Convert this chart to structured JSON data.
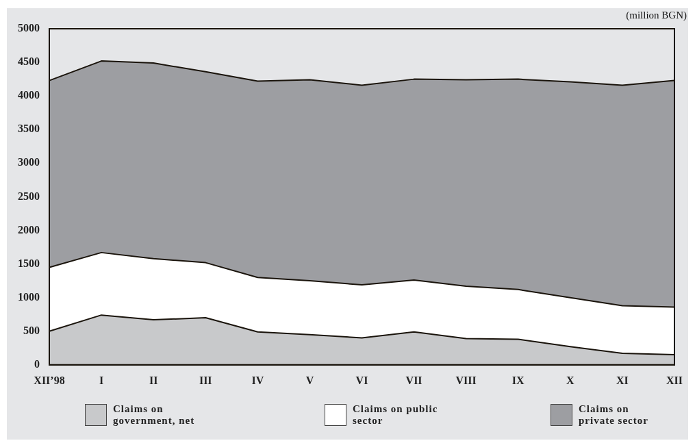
{
  "chart_data": {
    "type": "area",
    "stacked": true,
    "annotations": [
      "(million BGN)"
    ],
    "categories": [
      "XII’98",
      "I",
      "II",
      "III",
      "IV",
      "V",
      "VI",
      "VII",
      "VIII",
      "IX",
      "X",
      "XI",
      "XII"
    ],
    "series": [
      {
        "name": "Claims on government, net",
        "color": "#c8c9cb",
        "values": [
          500,
          740,
          670,
          700,
          490,
          450,
          400,
          490,
          390,
          380,
          270,
          170,
          150
        ]
      },
      {
        "name": "Claims on public sector",
        "color": "#ffffff",
        "values": [
          950,
          930,
          910,
          820,
          810,
          800,
          790,
          770,
          780,
          740,
          730,
          710,
          710
        ]
      },
      {
        "name": "Claims on private sector",
        "color": "#9d9ea2",
        "values": [
          2780,
          2850,
          2910,
          2840,
          2920,
          2990,
          2970,
          2990,
          3070,
          3130,
          3210,
          3280,
          3370
        ]
      }
    ],
    "ylim": [
      0,
      5000
    ],
    "yticks": [
      0,
      500,
      1000,
      1500,
      2000,
      2500,
      3000,
      3500,
      4000,
      4500,
      5000
    ],
    "grid": false,
    "legend": "bottom"
  }
}
